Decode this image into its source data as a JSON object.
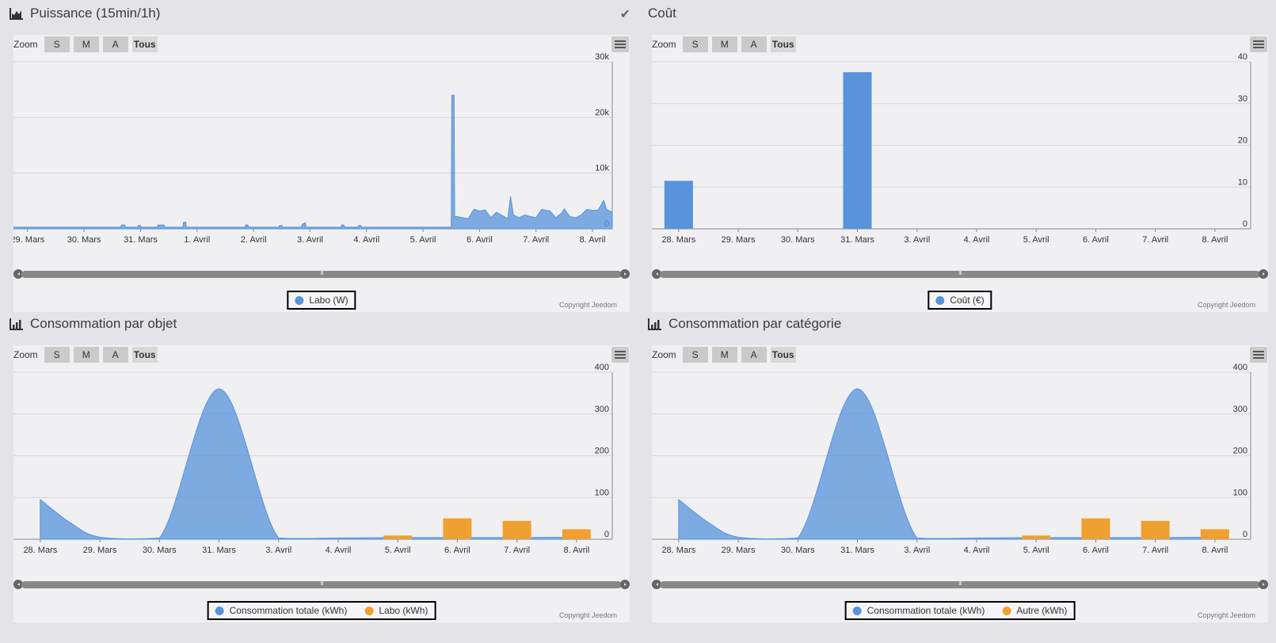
{
  "common": {
    "zoom_label": "Zoom",
    "zoom_buttons": [
      "S",
      "M",
      "A",
      "Tous"
    ],
    "copyright": "Copyright Jeedom",
    "navigator_grip": "III"
  },
  "panels": [
    {
      "title": "Puissance (15min/1h)",
      "icon": "area-chart-icon",
      "check_icon": "checkmark-icon",
      "legend": [
        {
          "label": "Labo (W)",
          "color": "#5893dc"
        }
      ],
      "chart_data": {
        "type": "area",
        "title": "Puissance (15min/1h)",
        "categories": [
          "29. Mars",
          "30. Mars",
          "31. Mars",
          "1. Avril",
          "2. Avril",
          "3. Avril",
          "4. Avril",
          "5. Avril",
          "6. Avril",
          "7. Avril",
          "8. Avril"
        ],
        "yticks": [
          "0",
          "10k",
          "20k",
          "30k"
        ],
        "ylim": [
          0,
          30000
        ],
        "xlim": [
          -0.25,
          10.35
        ],
        "series": [
          {
            "name": "Labo (W)",
            "color": "#5893dc",
            "points": [
              [
                -0.25,
                300
              ],
              [
                1.65,
                300
              ],
              [
                1.66,
                700
              ],
              [
                1.72,
                700
              ],
              [
                1.73,
                300
              ],
              [
                1.95,
                300
              ],
              [
                1.96,
                600
              ],
              [
                2.0,
                600
              ],
              [
                2.01,
                300
              ],
              [
                2.3,
                300
              ],
              [
                2.31,
                700
              ],
              [
                2.42,
                700
              ],
              [
                2.43,
                300
              ],
              [
                2.75,
                300
              ],
              [
                2.76,
                1200
              ],
              [
                2.8,
                1200
              ],
              [
                2.81,
                300
              ],
              [
                3.85,
                300
              ],
              [
                3.86,
                700
              ],
              [
                3.9,
                700
              ],
              [
                3.91,
                300
              ],
              [
                4.45,
                300
              ],
              [
                4.46,
                600
              ],
              [
                4.5,
                600
              ],
              [
                4.51,
                300
              ],
              [
                4.85,
                300
              ],
              [
                4.86,
                800
              ],
              [
                4.92,
                1100
              ],
              [
                4.93,
                300
              ],
              [
                5.55,
                300
              ],
              [
                5.56,
                700
              ],
              [
                5.6,
                700
              ],
              [
                5.61,
                300
              ],
              [
                5.85,
                300
              ],
              [
                5.86,
                600
              ],
              [
                5.9,
                600
              ],
              [
                5.91,
                300
              ],
              [
                7.45,
                300
              ],
              [
                7.5,
                300
              ],
              [
                7.51,
                24000
              ],
              [
                7.55,
                24000
              ],
              [
                7.56,
                2200
              ],
              [
                7.6,
                2200
              ],
              [
                7.8,
                1800
              ],
              [
                7.9,
                3500
              ],
              [
                8.0,
                3200
              ],
              [
                8.1,
                3400
              ],
              [
                8.2,
                2000
              ],
              [
                8.3,
                3000
              ],
              [
                8.4,
                2400
              ],
              [
                8.5,
                1800
              ],
              [
                8.55,
                5800
              ],
              [
                8.6,
                2500
              ],
              [
                8.7,
                2000
              ],
              [
                8.8,
                2500
              ],
              [
                8.9,
                2200
              ],
              [
                9.0,
                2000
              ],
              [
                9.1,
                3500
              ],
              [
                9.25,
                3200
              ],
              [
                9.35,
                2000
              ],
              [
                9.45,
                2800
              ],
              [
                9.5,
                3600
              ],
              [
                9.6,
                2200
              ],
              [
                9.7,
                2000
              ],
              [
                9.8,
                2500
              ],
              [
                9.9,
                3500
              ],
              [
                10.0,
                3300
              ],
              [
                10.1,
                3400
              ],
              [
                10.2,
                5100
              ],
              [
                10.25,
                3500
              ],
              [
                10.35,
                3000
              ]
            ]
          }
        ]
      }
    },
    {
      "title": "Coût",
      "icon": "",
      "check_icon": "",
      "legend": [
        {
          "label": "Coût (€)",
          "color": "#5893dc"
        }
      ],
      "chart_data": {
        "type": "bar",
        "title": "Coût",
        "categories": [
          "28. Mars",
          "29. Mars",
          "30. Mars",
          "31. Mars",
          "3. Avril",
          "4. Avril",
          "5. Avril",
          "6. Avril",
          "7. Avril",
          "8. Avril"
        ],
        "yticks": [
          "0",
          "10",
          "20",
          "30",
          "40"
        ],
        "ylim": [
          0,
          40
        ],
        "xlim": [
          -0.45,
          9.6
        ],
        "series": [
          {
            "name": "Coût (€)",
            "color": "#5893dc",
            "bars": [
              [
                0,
                11.5
              ],
              [
                3,
                37.5
              ]
            ]
          }
        ]
      }
    },
    {
      "title": "Consommation par objet",
      "icon": "bar-chart-icon",
      "check_icon": "",
      "legend": [
        {
          "label": "Consommation totale (kWh)",
          "color": "#5893dc"
        },
        {
          "label": "Labo (kWh)",
          "color": "#f0a030"
        }
      ],
      "chart_data": {
        "type": "area",
        "title": "Consommation par objet",
        "categories": [
          "28. Mars",
          "29. Mars",
          "30. Mars",
          "31. Mars",
          "3. Avril",
          "4. Avril",
          "5. Avril",
          "6. Avril",
          "7. Avril",
          "8. Avril"
        ],
        "yticks": [
          "0",
          "100",
          "200",
          "300",
          "400"
        ],
        "ylim": [
          0,
          400
        ],
        "xlim": [
          -0.45,
          9.6
        ],
        "series": [
          {
            "name": "Consommation totale (kWh)",
            "color": "#5893dc",
            "points": [
              [
                0,
                95
              ],
              [
                0.5,
                40
              ],
              [
                1,
                5
              ],
              [
                2,
                3
              ],
              [
                3,
                360
              ],
              [
                4,
                3
              ],
              [
                5,
                3
              ],
              [
                6,
                4
              ],
              [
                7,
                4
              ],
              [
                8,
                4
              ],
              [
                9,
                5
              ]
            ]
          },
          {
            "name": "Labo (kWh)",
            "color": "#f0a030",
            "bars": [
              [
                6,
                9
              ],
              [
                7,
                50
              ],
              [
                8,
                44
              ],
              [
                9,
                24
              ]
            ]
          }
        ]
      }
    },
    {
      "title": "Consommation par catégorie",
      "icon": "bar-chart-icon",
      "check_icon": "",
      "legend": [
        {
          "label": "Consommation totale (kWh)",
          "color": "#5893dc"
        },
        {
          "label": "Autre (kWh)",
          "color": "#f0a030"
        }
      ],
      "chart_data": {
        "type": "area",
        "title": "Consommation par catégorie",
        "categories": [
          "28. Mars",
          "29. Mars",
          "30. Mars",
          "31. Mars",
          "3. Avril",
          "4. Avril",
          "5. Avril",
          "6. Avril",
          "7. Avril",
          "8. Avril"
        ],
        "yticks": [
          "0",
          "100",
          "200",
          "300",
          "400"
        ],
        "ylim": [
          0,
          400
        ],
        "xlim": [
          -0.45,
          9.6
        ],
        "series": [
          {
            "name": "Consommation totale (kWh)",
            "color": "#5893dc",
            "points": [
              [
                0,
                95
              ],
              [
                0.5,
                40
              ],
              [
                1,
                5
              ],
              [
                2,
                3
              ],
              [
                3,
                360
              ],
              [
                4,
                3
              ],
              [
                5,
                3
              ],
              [
                6,
                4
              ],
              [
                7,
                4
              ],
              [
                8,
                4
              ],
              [
                9,
                5
              ]
            ]
          },
          {
            "name": "Autre (kWh)",
            "color": "#f0a030",
            "bars": [
              [
                6,
                9
              ],
              [
                7,
                50
              ],
              [
                8,
                44
              ],
              [
                9,
                24
              ]
            ]
          }
        ]
      }
    }
  ]
}
